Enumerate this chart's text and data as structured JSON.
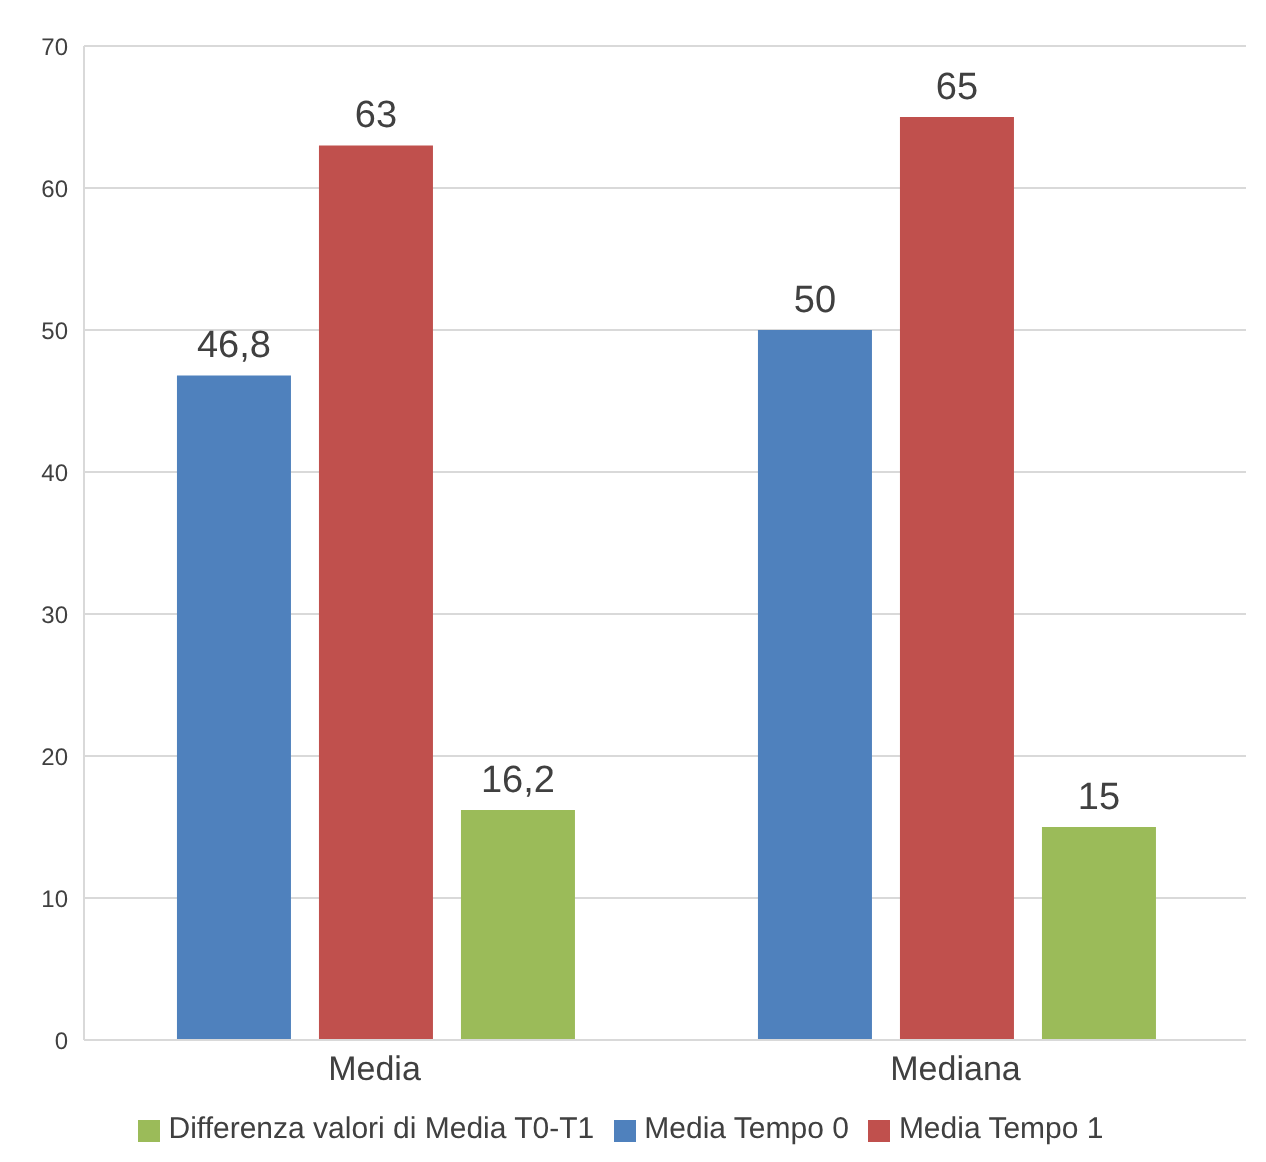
{
  "chart_data": {
    "type": "bar",
    "categories": [
      "Media",
      "Mediana"
    ],
    "series": [
      {
        "name": "Media Tempo 0",
        "color": "#4f81bd",
        "values": [
          46.8,
          50
        ],
        "value_labels": [
          "46,8",
          "50"
        ]
      },
      {
        "name": "Media Tempo 1",
        "color": "#c0504d",
        "values": [
          63,
          65
        ],
        "value_labels": [
          "63",
          "65"
        ]
      },
      {
        "name": "Differenza valori di Media T0-T1",
        "color": "#9bbb59",
        "values": [
          16.2,
          15
        ],
        "value_labels": [
          "16,2",
          "15"
        ]
      }
    ],
    "ylim": [
      0,
      70
    ],
    "yticks": [
      0,
      10,
      20,
      30,
      40,
      50,
      60,
      70
    ],
    "grid": "y",
    "legend": "bottom"
  }
}
